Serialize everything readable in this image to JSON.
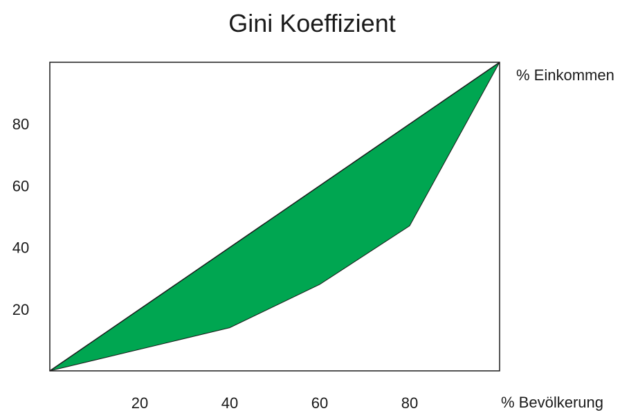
{
  "chart_data": {
    "type": "area",
    "title": "Gini Koeffizient",
    "xlabel": "% Bevölkerung",
    "ylabel": "% Einkommen",
    "xlim": [
      0,
      100
    ],
    "ylim": [
      0,
      100
    ],
    "x_ticks": [
      20,
      40,
      60,
      80
    ],
    "y_ticks": [
      20,
      40,
      60,
      80
    ],
    "grid": false,
    "fill_color": "#00a651",
    "line_color": "#1a1a1a",
    "series": [
      {
        "x": [
          0,
          100
        ],
        "y": [
          0,
          100
        ]
      },
      {
        "x": [
          0,
          40,
          60,
          80,
          100
        ],
        "y": [
          0,
          14,
          28,
          47,
          100
        ]
      }
    ]
  }
}
